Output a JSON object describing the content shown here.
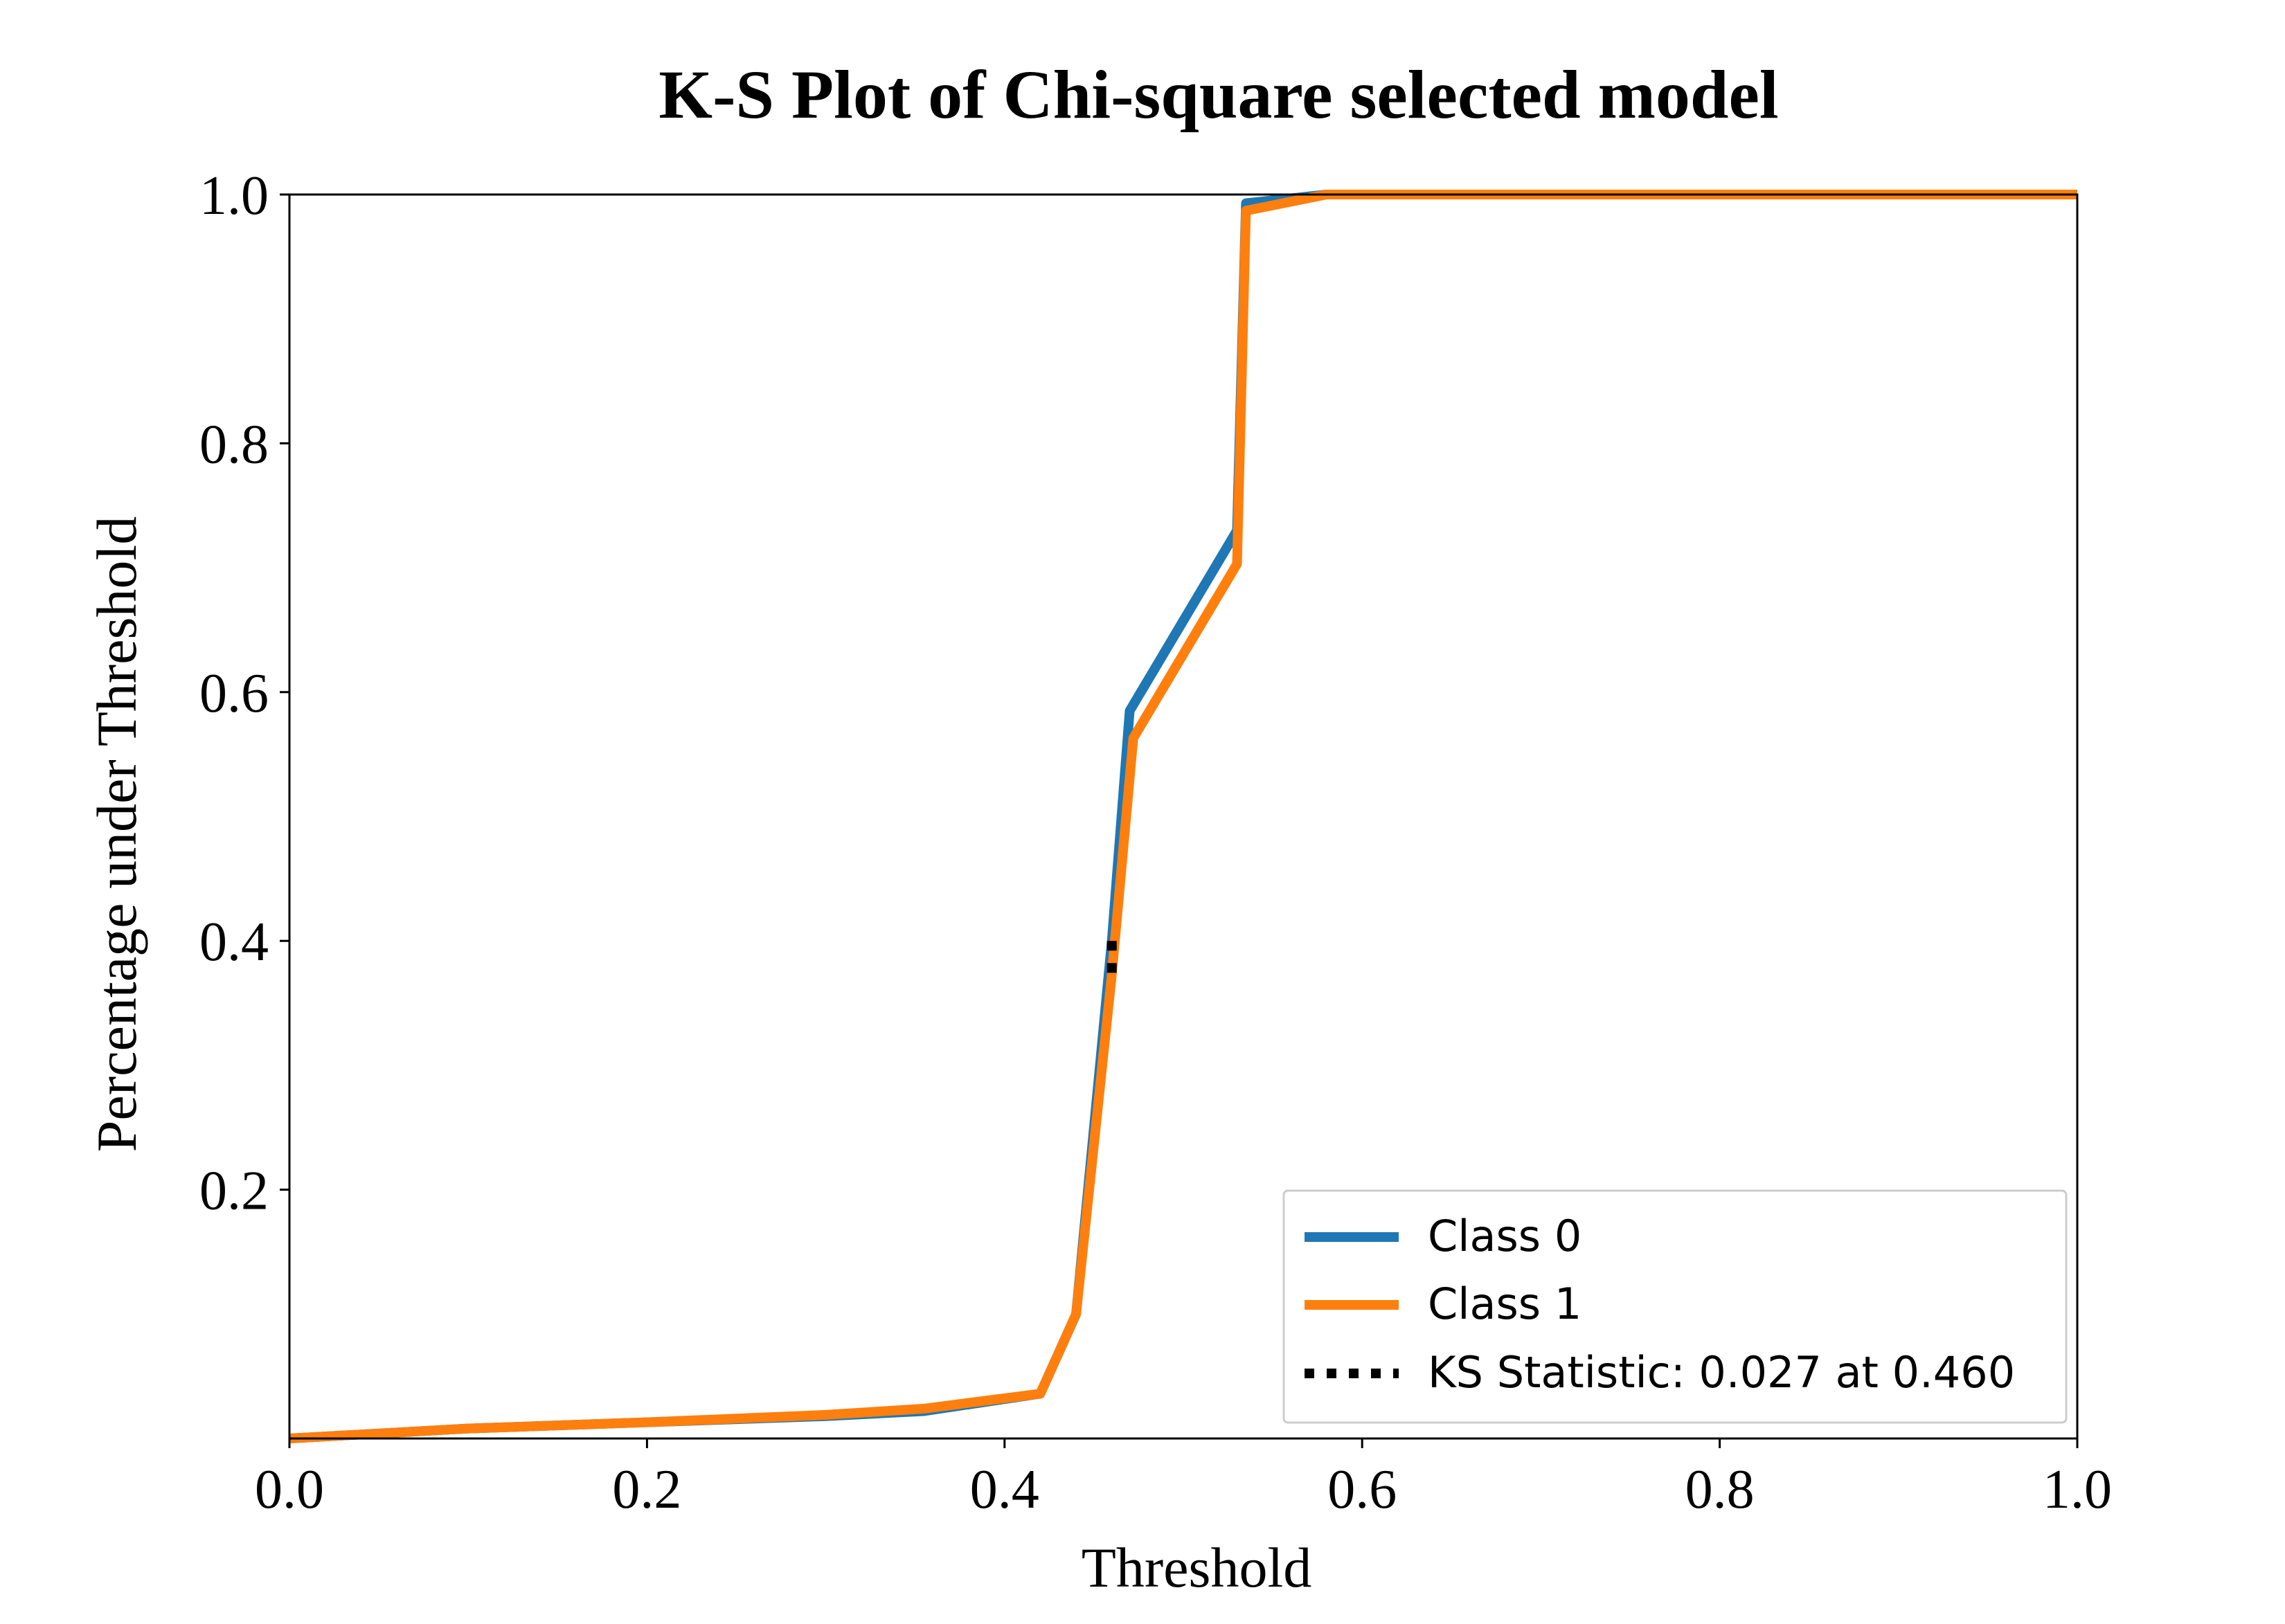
{
  "chart_data": {
    "type": "line",
    "title": "K-S Plot of Chi-square selected model",
    "xlabel": "Threshold",
    "ylabel": "Percentage under Threshold",
    "xlim": [
      0.0,
      1.0
    ],
    "ylim": [
      0.0,
      1.0
    ],
    "xticks": [
      "0.0",
      "0.2",
      "0.4",
      "0.6",
      "0.8",
      "1.0"
    ],
    "yticks": [
      "0.2",
      "0.4",
      "0.6",
      "0.8",
      "1.0"
    ],
    "grid": false,
    "legend_position": "lower-right",
    "series": [
      {
        "name": "Class 0",
        "color": "#1f77b4",
        "x": [
          0.0,
          0.1,
          0.2,
          0.3,
          0.355,
          0.42,
          0.44,
          0.46,
          0.47,
          0.53,
          0.535,
          0.58,
          1.0
        ],
        "y": [
          0.0,
          0.008,
          0.013,
          0.018,
          0.022,
          0.036,
          0.1,
          0.4,
          0.585,
          0.73,
          0.993,
          1.0,
          1.0
        ]
      },
      {
        "name": "Class 1",
        "color": "#ff7f0e",
        "x": [
          0.0,
          0.1,
          0.2,
          0.3,
          0.355,
          0.42,
          0.44,
          0.46,
          0.472,
          0.53,
          0.535,
          0.58,
          1.0
        ],
        "y": [
          0.0,
          0.008,
          0.013,
          0.019,
          0.024,
          0.036,
          0.1,
          0.373,
          0.563,
          0.703,
          0.987,
          1.0,
          1.0
        ]
      }
    ],
    "ks_statistic": {
      "label": "KS Statistic: 0.027 at 0.460",
      "x": 0.46,
      "y_from": 0.373,
      "y_to": 0.4,
      "color": "#000000"
    }
  }
}
